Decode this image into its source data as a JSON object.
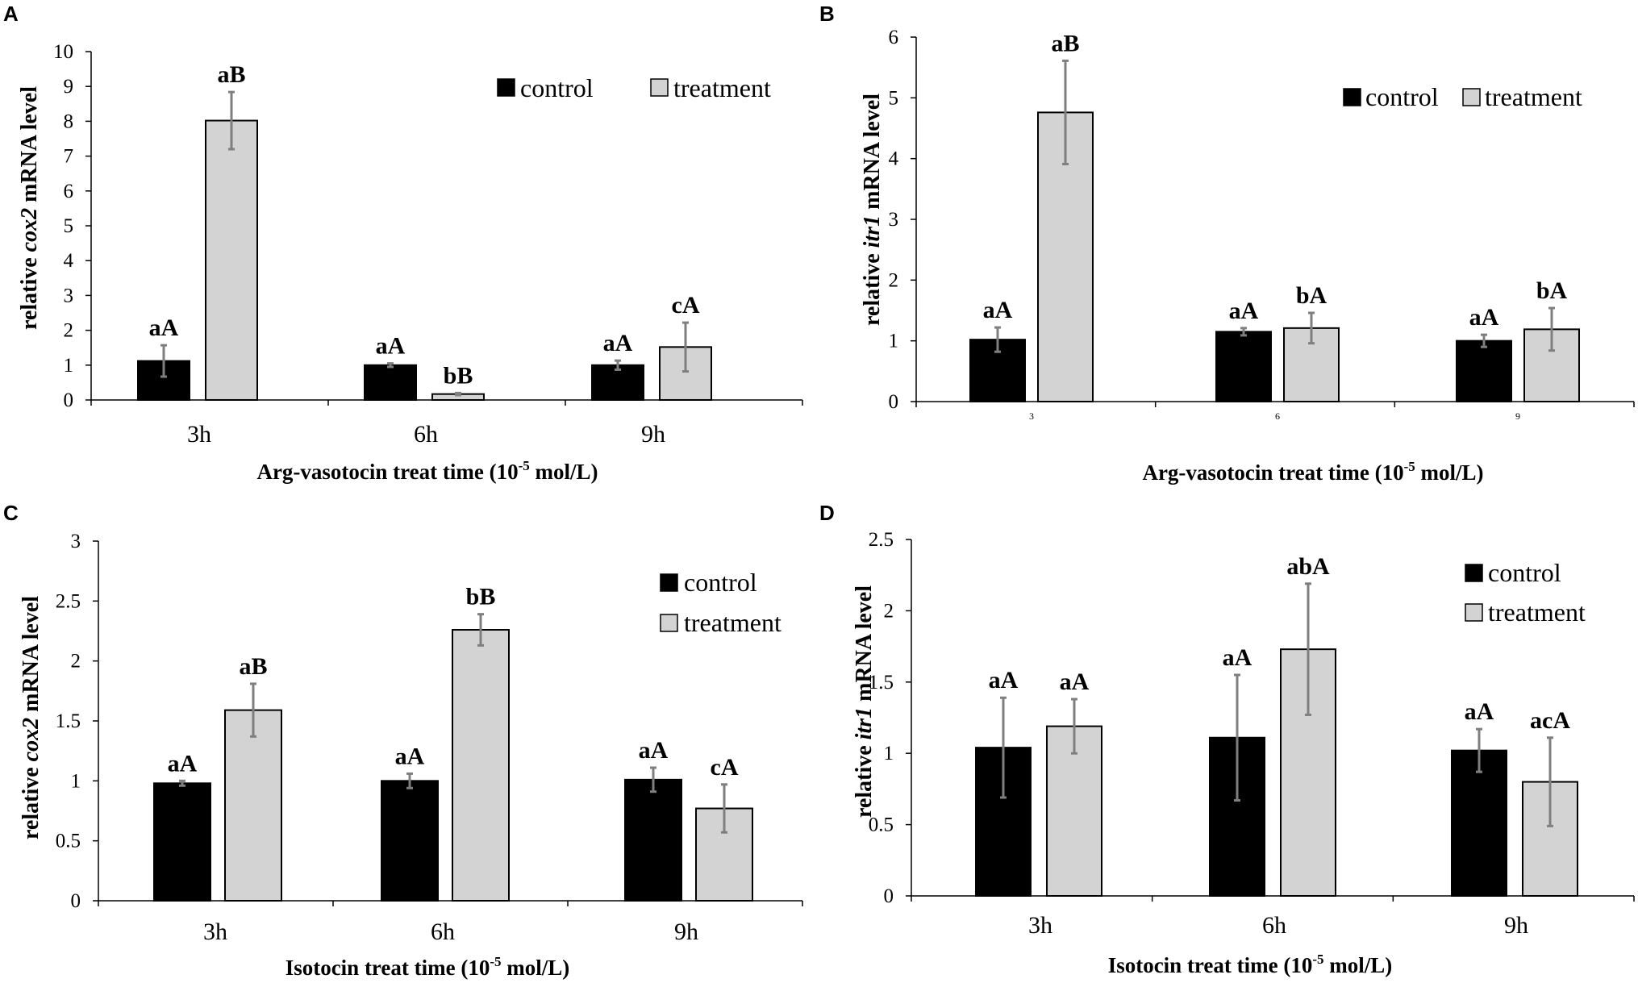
{
  "figure": {
    "panels": [
      {
        "panel_label": "A",
        "ylabel_pre": "relative ",
        "ylabel_gene": "cox2",
        "ylabel_post": " mRNA level",
        "xlabel_pre": "Arg-vasotocin treat time (10",
        "xlabel_sup": "-5",
        "xlabel_post": " mol/L)",
        "legend_control": "control",
        "legend_treatment": "treatment",
        "yticks": [
          "0",
          "1",
          "2",
          "3",
          "4",
          "5",
          "6",
          "7",
          "8",
          "9",
          "10"
        ]
      },
      {
        "panel_label": "B",
        "ylabel_pre": "relative ",
        "ylabel_gene": "itr1",
        "ylabel_post": " mRNA level",
        "xlabel_pre": "Arg-vasotocin treat time (10",
        "xlabel_sup": "-5",
        "xlabel_post": " mol/L)",
        "legend_control": "control",
        "legend_treatment": "treatment",
        "yticks": [
          "0",
          "1",
          "2",
          "3",
          "4",
          "5",
          "6"
        ]
      },
      {
        "panel_label": "C",
        "ylabel_pre": "relative ",
        "ylabel_gene": "cox2",
        "ylabel_post": " mRNA level",
        "xlabel_pre": "Isotocin treat time (10",
        "xlabel_sup": "-5",
        "xlabel_post": " mol/L)",
        "legend_control": "control",
        "legend_treatment": "treatment",
        "yticks": [
          "0",
          "0.5",
          "1",
          "1.5",
          "2",
          "2.5",
          "3"
        ]
      },
      {
        "panel_label": "D",
        "ylabel_pre": "relative ",
        "ylabel_gene": "itr1",
        "ylabel_post": " mRNA level",
        "xlabel_pre": "Isotocin treat time (10",
        "xlabel_sup": "-5",
        "xlabel_post": " mol/L)",
        "legend_control": "control",
        "legend_treatment": "treatment",
        "yticks": [
          "0",
          "0.5",
          "1",
          "1.5",
          "2",
          "2.5"
        ]
      }
    ]
  },
  "colors": {
    "control": "#000000",
    "treatment": "#d3d3d3",
    "error_bar": "#7f7f7f"
  },
  "chart_data": [
    {
      "type": "bar",
      "panel": "A",
      "categories": [
        "3h",
        "6h",
        "9h"
      ],
      "ylim": [
        0,
        10
      ],
      "series": [
        {
          "name": "control",
          "values": [
            1.12,
            1.0,
            1.0
          ],
          "errors": [
            0.45,
            0.05,
            0.13
          ],
          "labels": [
            "aA",
            "aA",
            "aA"
          ]
        },
        {
          "name": "treatment",
          "values": [
            8.02,
            0.17,
            1.52
          ],
          "errors": [
            0.82,
            0.03,
            0.7
          ],
          "labels": [
            "aB",
            "bB",
            "cA"
          ]
        }
      ]
    },
    {
      "type": "bar",
      "panel": "B",
      "categories": [
        "3",
        "6",
        "9"
      ],
      "ylim": [
        0,
        6
      ],
      "series": [
        {
          "name": "control",
          "values": [
            1.02,
            1.15,
            1.0
          ],
          "errors": [
            0.2,
            0.06,
            0.1
          ],
          "labels": [
            "aA",
            "aA",
            "aA"
          ]
        },
        {
          "name": "treatment",
          "values": [
            4.76,
            1.21,
            1.19
          ],
          "errors": [
            0.85,
            0.25,
            0.35
          ],
          "labels": [
            "aB",
            "bA",
            "bA"
          ]
        }
      ]
    },
    {
      "type": "bar",
      "panel": "C",
      "categories": [
        "3h",
        "6h",
        "9h"
      ],
      "ylim": [
        0,
        3
      ],
      "series": [
        {
          "name": "control",
          "values": [
            0.98,
            1.0,
            1.01
          ],
          "errors": [
            0.02,
            0.06,
            0.1
          ],
          "labels": [
            "aA",
            "aA",
            "aA"
          ]
        },
        {
          "name": "treatment",
          "values": [
            1.59,
            2.26,
            0.77
          ],
          "errors": [
            0.22,
            0.13,
            0.2
          ],
          "labels": [
            "aB",
            "bB",
            "cA"
          ]
        }
      ]
    },
    {
      "type": "bar",
      "panel": "D",
      "categories": [
        "3h",
        "6h",
        "9h"
      ],
      "ylim": [
        0,
        2.5
      ],
      "series": [
        {
          "name": "control",
          "values": [
            1.04,
            1.11,
            1.02
          ],
          "errors": [
            0.35,
            0.44,
            0.15
          ],
          "labels": [
            "aA",
            "aA",
            "aA"
          ]
        },
        {
          "name": "treatment",
          "values": [
            1.19,
            1.73,
            0.8
          ],
          "errors": [
            0.19,
            0.46,
            0.31
          ],
          "labels": [
            "aA",
            "abA",
            "acA"
          ]
        }
      ]
    }
  ]
}
